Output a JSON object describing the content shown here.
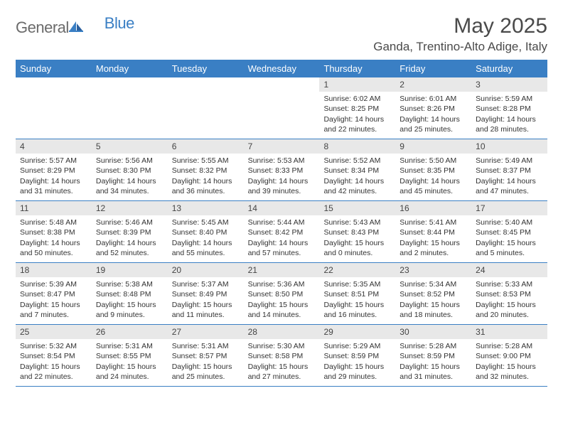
{
  "logo": {
    "text1": "General",
    "text2": "Blue"
  },
  "title": "May 2025",
  "location": "Ganda, Trentino-Alto Adige, Italy",
  "colors": {
    "header_bg": "#3a7fc4",
    "header_text": "#ffffff",
    "daynum_bg": "#e8e8e8",
    "border": "#3a7fc4",
    "page_bg": "#ffffff",
    "title_color": "#4a4a4a",
    "logo_gray": "#6b6b6b",
    "logo_blue": "#3a7fc4",
    "body_text": "#333333"
  },
  "day_names": [
    "Sunday",
    "Monday",
    "Tuesday",
    "Wednesday",
    "Thursday",
    "Friday",
    "Saturday"
  ],
  "weeks": [
    [
      {
        "empty": true
      },
      {
        "empty": true
      },
      {
        "empty": true
      },
      {
        "empty": true
      },
      {
        "n": "1",
        "sunrise": "6:02 AM",
        "sunset": "8:25 PM",
        "daylight": "14 hours and 22 minutes."
      },
      {
        "n": "2",
        "sunrise": "6:01 AM",
        "sunset": "8:26 PM",
        "daylight": "14 hours and 25 minutes."
      },
      {
        "n": "3",
        "sunrise": "5:59 AM",
        "sunset": "8:28 PM",
        "daylight": "14 hours and 28 minutes."
      }
    ],
    [
      {
        "n": "4",
        "sunrise": "5:57 AM",
        "sunset": "8:29 PM",
        "daylight": "14 hours and 31 minutes."
      },
      {
        "n": "5",
        "sunrise": "5:56 AM",
        "sunset": "8:30 PM",
        "daylight": "14 hours and 34 minutes."
      },
      {
        "n": "6",
        "sunrise": "5:55 AM",
        "sunset": "8:32 PM",
        "daylight": "14 hours and 36 minutes."
      },
      {
        "n": "7",
        "sunrise": "5:53 AM",
        "sunset": "8:33 PM",
        "daylight": "14 hours and 39 minutes."
      },
      {
        "n": "8",
        "sunrise": "5:52 AM",
        "sunset": "8:34 PM",
        "daylight": "14 hours and 42 minutes."
      },
      {
        "n": "9",
        "sunrise": "5:50 AM",
        "sunset": "8:35 PM",
        "daylight": "14 hours and 45 minutes."
      },
      {
        "n": "10",
        "sunrise": "5:49 AM",
        "sunset": "8:37 PM",
        "daylight": "14 hours and 47 minutes."
      }
    ],
    [
      {
        "n": "11",
        "sunrise": "5:48 AM",
        "sunset": "8:38 PM",
        "daylight": "14 hours and 50 minutes."
      },
      {
        "n": "12",
        "sunrise": "5:46 AM",
        "sunset": "8:39 PM",
        "daylight": "14 hours and 52 minutes."
      },
      {
        "n": "13",
        "sunrise": "5:45 AM",
        "sunset": "8:40 PM",
        "daylight": "14 hours and 55 minutes."
      },
      {
        "n": "14",
        "sunrise": "5:44 AM",
        "sunset": "8:42 PM",
        "daylight": "14 hours and 57 minutes."
      },
      {
        "n": "15",
        "sunrise": "5:43 AM",
        "sunset": "8:43 PM",
        "daylight": "15 hours and 0 minutes."
      },
      {
        "n": "16",
        "sunrise": "5:41 AM",
        "sunset": "8:44 PM",
        "daylight": "15 hours and 2 minutes."
      },
      {
        "n": "17",
        "sunrise": "5:40 AM",
        "sunset": "8:45 PM",
        "daylight": "15 hours and 5 minutes."
      }
    ],
    [
      {
        "n": "18",
        "sunrise": "5:39 AM",
        "sunset": "8:47 PM",
        "daylight": "15 hours and 7 minutes."
      },
      {
        "n": "19",
        "sunrise": "5:38 AM",
        "sunset": "8:48 PM",
        "daylight": "15 hours and 9 minutes."
      },
      {
        "n": "20",
        "sunrise": "5:37 AM",
        "sunset": "8:49 PM",
        "daylight": "15 hours and 11 minutes."
      },
      {
        "n": "21",
        "sunrise": "5:36 AM",
        "sunset": "8:50 PM",
        "daylight": "15 hours and 14 minutes."
      },
      {
        "n": "22",
        "sunrise": "5:35 AM",
        "sunset": "8:51 PM",
        "daylight": "15 hours and 16 minutes."
      },
      {
        "n": "23",
        "sunrise": "5:34 AM",
        "sunset": "8:52 PM",
        "daylight": "15 hours and 18 minutes."
      },
      {
        "n": "24",
        "sunrise": "5:33 AM",
        "sunset": "8:53 PM",
        "daylight": "15 hours and 20 minutes."
      }
    ],
    [
      {
        "n": "25",
        "sunrise": "5:32 AM",
        "sunset": "8:54 PM",
        "daylight": "15 hours and 22 minutes."
      },
      {
        "n": "26",
        "sunrise": "5:31 AM",
        "sunset": "8:55 PM",
        "daylight": "15 hours and 24 minutes."
      },
      {
        "n": "27",
        "sunrise": "5:31 AM",
        "sunset": "8:57 PM",
        "daylight": "15 hours and 25 minutes."
      },
      {
        "n": "28",
        "sunrise": "5:30 AM",
        "sunset": "8:58 PM",
        "daylight": "15 hours and 27 minutes."
      },
      {
        "n": "29",
        "sunrise": "5:29 AM",
        "sunset": "8:59 PM",
        "daylight": "15 hours and 29 minutes."
      },
      {
        "n": "30",
        "sunrise": "5:28 AM",
        "sunset": "8:59 PM",
        "daylight": "15 hours and 31 minutes."
      },
      {
        "n": "31",
        "sunrise": "5:28 AM",
        "sunset": "9:00 PM",
        "daylight": "15 hours and 32 minutes."
      }
    ]
  ]
}
